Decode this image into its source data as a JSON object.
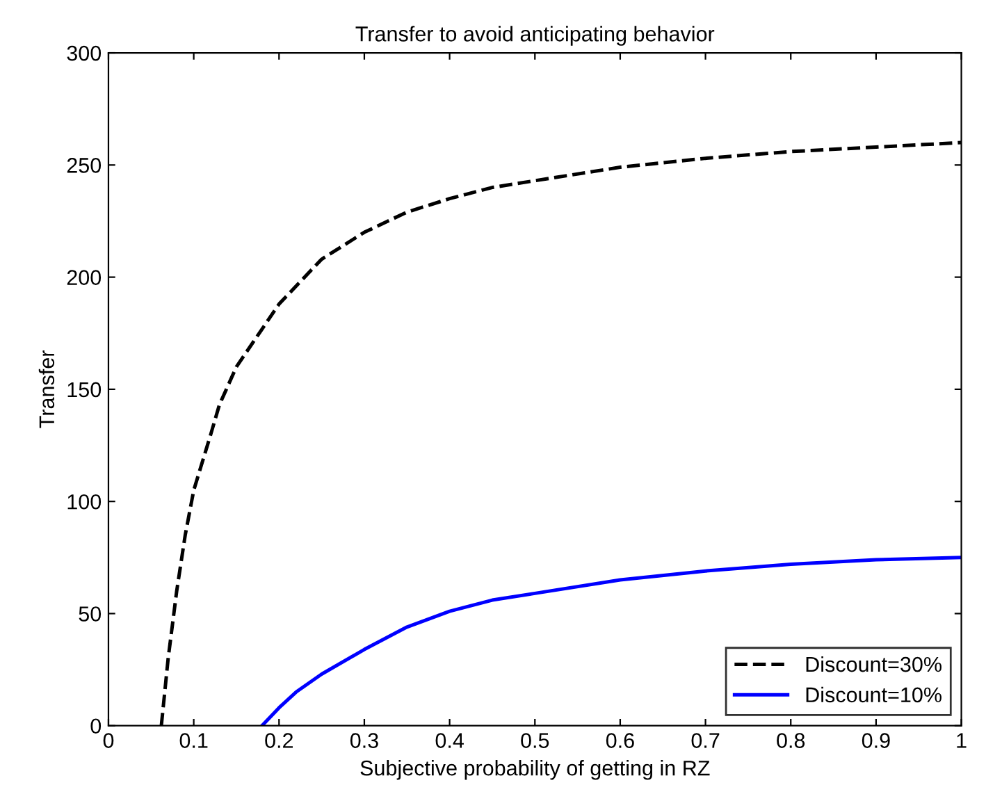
{
  "chart_data": {
    "type": "line",
    "title": "Transfer to avoid anticipating behavior",
    "xlabel": "Subjective probability of getting in RZ",
    "ylabel": "Transfer",
    "xlim": [
      0,
      1
    ],
    "xticks": [
      0,
      0.1,
      0.2,
      0.3,
      0.4,
      0.5,
      0.6,
      0.7,
      0.8,
      0.9,
      1
    ],
    "ylim": [
      0,
      300
    ],
    "yticks": [
      0,
      50,
      100,
      150,
      200,
      250,
      300
    ],
    "grid": false,
    "legend": "bottom right",
    "marker": "none",
    "series": [
      {
        "name": "Discount=30%",
        "color": "#000000",
        "line_style": "dashed",
        "x": [
          0.062,
          0.07,
          0.08,
          0.09,
          0.1,
          0.12,
          0.13,
          0.15,
          0.2,
          0.25,
          0.3,
          0.35,
          0.4,
          0.45,
          0.5,
          0.6,
          0.7,
          0.8,
          0.9,
          1.0
        ],
        "values": [
          0,
          30,
          60,
          85,
          105,
          130,
          143,
          160,
          188,
          208,
          220,
          229,
          235,
          240,
          243,
          249,
          253,
          256,
          258,
          260
        ]
      },
      {
        "name": "Discount=10%",
        "color": "#0000ff",
        "line_style": "solid",
        "x": [
          0.18,
          0.2,
          0.22,
          0.25,
          0.3,
          0.35,
          0.4,
          0.45,
          0.5,
          0.6,
          0.7,
          0.8,
          0.9,
          1.0
        ],
        "values": [
          0,
          8,
          15,
          23,
          34,
          44,
          51,
          56,
          59,
          65,
          69,
          72,
          74,
          75
        ]
      }
    ]
  }
}
